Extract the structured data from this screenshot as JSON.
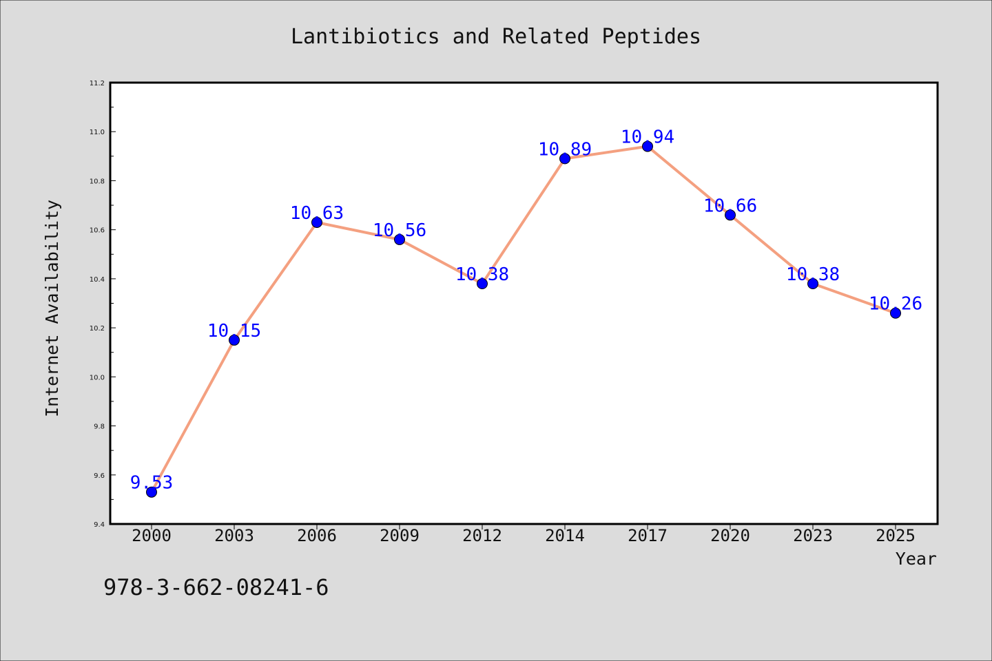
{
  "chart_data": {
    "type": "line",
    "title": "Lantibiotics and Related Peptides",
    "xlabel": "Year",
    "ylabel": "Internet Availability",
    "categories": [
      "2000",
      "2003",
      "2006",
      "2009",
      "2012",
      "2014",
      "2017",
      "2020",
      "2023",
      "2025"
    ],
    "series": [
      {
        "values": [
          9.53,
          10.15,
          10.63,
          10.56,
          10.38,
          10.89,
          10.94,
          10.66,
          10.38,
          10.26
        ]
      }
    ],
    "data_labels": [
      "9.53",
      "10.15",
      "10.63",
      "10.56",
      "10.38",
      "10.89",
      "10.94",
      "10.66",
      "10.38",
      "10.26"
    ],
    "ylim": [
      9.4,
      11.2
    ],
    "yticks": [
      "9.4",
      "9.6",
      "9.8",
      "10.0",
      "10.2",
      "10.4",
      "10.6",
      "10.8",
      "11.0",
      "11.2"
    ],
    "grid": false,
    "legend": "none",
    "colors": {
      "line": "#f4a080",
      "marker": "#0000ff",
      "data_label": "#0000ff",
      "figure_background": "#dcdcdc",
      "plot_background": "#ffffff"
    }
  },
  "footer": {
    "text": "978-3-662-08241-6"
  }
}
